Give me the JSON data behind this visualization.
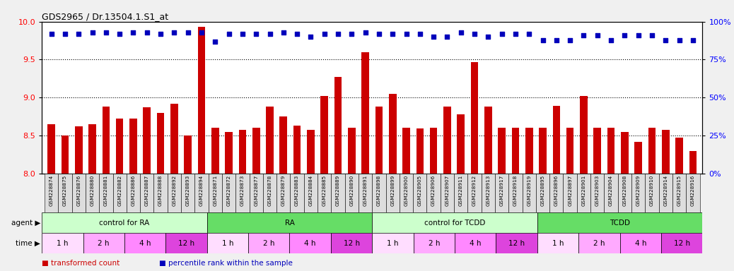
{
  "title": "GDS2965 / Dr.13504.1.S1_at",
  "gsm_labels": [
    "GSM228874",
    "GSM228875",
    "GSM228876",
    "GSM228880",
    "GSM228881",
    "GSM228882",
    "GSM228886",
    "GSM228887",
    "GSM228888",
    "GSM228892",
    "GSM228893",
    "GSM228894",
    "GSM228871",
    "GSM228872",
    "GSM228873",
    "GSM228877",
    "GSM228878",
    "GSM228879",
    "GSM228883",
    "GSM228884",
    "GSM228885",
    "GSM228889",
    "GSM228890",
    "GSM228891",
    "GSM228898",
    "GSM228899",
    "GSM228900",
    "GSM228905",
    "GSM228906",
    "GSM228907",
    "GSM228911",
    "GSM228912",
    "GSM228913",
    "GSM228917",
    "GSM228918",
    "GSM228919",
    "GSM228895",
    "GSM228896",
    "GSM228897",
    "GSM228901",
    "GSM228903",
    "GSM228904",
    "GSM228908",
    "GSM228909",
    "GSM228910",
    "GSM228914",
    "GSM228915",
    "GSM228916"
  ],
  "bar_values": [
    8.65,
    8.5,
    8.62,
    8.65,
    8.88,
    8.72,
    8.72,
    8.87,
    8.8,
    8.92,
    8.5,
    9.93,
    8.6,
    8.55,
    8.57,
    8.6,
    8.88,
    8.75,
    8.63,
    8.57,
    9.02,
    9.27,
    8.6,
    9.6,
    8.88,
    9.05,
    8.6,
    8.59,
    8.6,
    8.88,
    8.78,
    9.47,
    8.88,
    8.6,
    8.6,
    8.6,
    8.6,
    8.89,
    8.6,
    9.02,
    8.6,
    8.6,
    8.55,
    8.42,
    8.6,
    8.57,
    8.47,
    8.3
  ],
  "pct_right": [
    92,
    92,
    92,
    93,
    93,
    92,
    93,
    93,
    92,
    93,
    93,
    93,
    87,
    92,
    92,
    92,
    92,
    93,
    92,
    90,
    92,
    92,
    92,
    93,
    92,
    92,
    92,
    92,
    90,
    90,
    93,
    92,
    90,
    92,
    92,
    92,
    88,
    88,
    88,
    91,
    91,
    88,
    91,
    91,
    91,
    88,
    88,
    88
  ],
  "bar_color": "#CC0000",
  "dot_color": "#0000BB",
  "ylim_left": [
    8.0,
    10.0
  ],
  "ylim_right": [
    0,
    100
  ],
  "yticks_left": [
    8.0,
    8.5,
    9.0,
    9.5,
    10.0
  ],
  "yticks_right": [
    0,
    25,
    50,
    75,
    100
  ],
  "agent_groups": [
    {
      "label": "control for RA",
      "start": 0,
      "end": 11,
      "color": "#CCFFCC"
    },
    {
      "label": "RA",
      "start": 12,
      "end": 23,
      "color": "#66DD66"
    },
    {
      "label": "control for TCDD",
      "start": 24,
      "end": 35,
      "color": "#CCFFCC"
    },
    {
      "label": "TCDD",
      "start": 36,
      "end": 47,
      "color": "#66DD66"
    }
  ],
  "time_groups": [
    {
      "label": "1 h",
      "start": 0,
      "end": 2,
      "color": "#FFDDFF"
    },
    {
      "label": "2 h",
      "start": 3,
      "end": 5,
      "color": "#FFAAFF"
    },
    {
      "label": "4 h",
      "start": 6,
      "end": 8,
      "color": "#FF88FF"
    },
    {
      "label": "12 h",
      "start": 9,
      "end": 11,
      "color": "#DD44DD"
    },
    {
      "label": "1 h",
      "start": 12,
      "end": 14,
      "color": "#FFDDFF"
    },
    {
      "label": "2 h",
      "start": 15,
      "end": 17,
      "color": "#FFAAFF"
    },
    {
      "label": "4 h",
      "start": 18,
      "end": 20,
      "color": "#FF88FF"
    },
    {
      "label": "12 h",
      "start": 21,
      "end": 23,
      "color": "#DD44DD"
    },
    {
      "label": "1 h",
      "start": 24,
      "end": 26,
      "color": "#FFDDFF"
    },
    {
      "label": "2 h",
      "start": 27,
      "end": 29,
      "color": "#FFAAFF"
    },
    {
      "label": "4 h",
      "start": 30,
      "end": 32,
      "color": "#FF88FF"
    },
    {
      "label": "12 h",
      "start": 33,
      "end": 35,
      "color": "#DD44DD"
    },
    {
      "label": "1 h",
      "start": 36,
      "end": 38,
      "color": "#FFDDFF"
    },
    {
      "label": "2 h",
      "start": 39,
      "end": 41,
      "color": "#FFAAFF"
    },
    {
      "label": "4 h",
      "start": 42,
      "end": 44,
      "color": "#FF88FF"
    },
    {
      "label": "12 h",
      "start": 45,
      "end": 47,
      "color": "#DD44DD"
    }
  ],
  "bg_color": "#F0F0F0",
  "plot_bg": "#FFFFFF",
  "cell_bg": "#DDDDDD",
  "grid_color": "#555555"
}
